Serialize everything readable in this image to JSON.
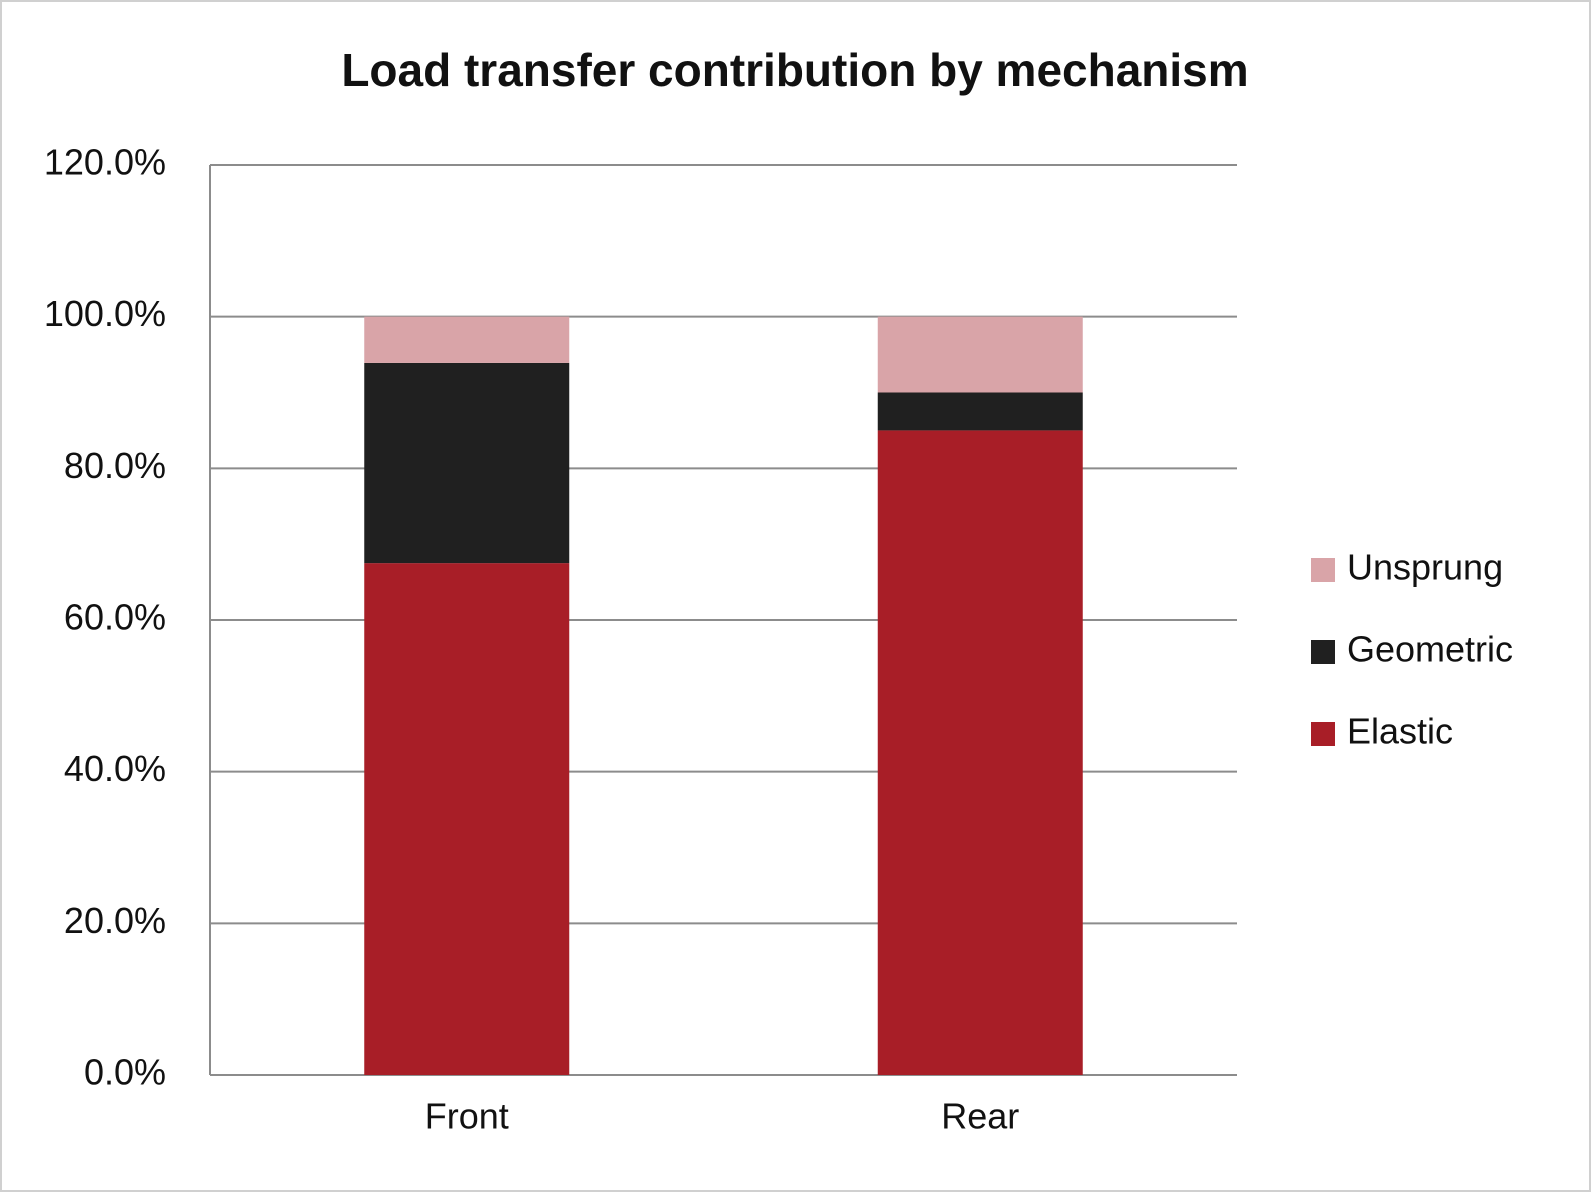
{
  "chart_data": {
    "type": "stacked-bar",
    "title": "Load transfer contribution by mechanism",
    "categories": [
      "Front",
      "Rear"
    ],
    "series": [
      {
        "name": "Elastic",
        "color": "#a81e27",
        "values": [
          67.5,
          85
        ]
      },
      {
        "name": "Geometric",
        "color": "#202020",
        "values": [
          26.4,
          5
        ]
      },
      {
        "name": "Unsprung",
        "color": "#d9a4a8",
        "values": [
          6.1,
          10
        ]
      }
    ],
    "ylim": [
      0,
      120
    ],
    "yticks": [
      {
        "value": 0,
        "label": "0.0%"
      },
      {
        "value": 20,
        "label": "20.0%"
      },
      {
        "value": 40,
        "label": "40.0%"
      },
      {
        "value": 60,
        "label": "60.0%"
      },
      {
        "value": 80,
        "label": "80.0%"
      },
      {
        "value": 100,
        "label": "100.0%"
      },
      {
        "value": 120,
        "label": "120.0%"
      }
    ],
    "grid": true,
    "legend": "right"
  }
}
